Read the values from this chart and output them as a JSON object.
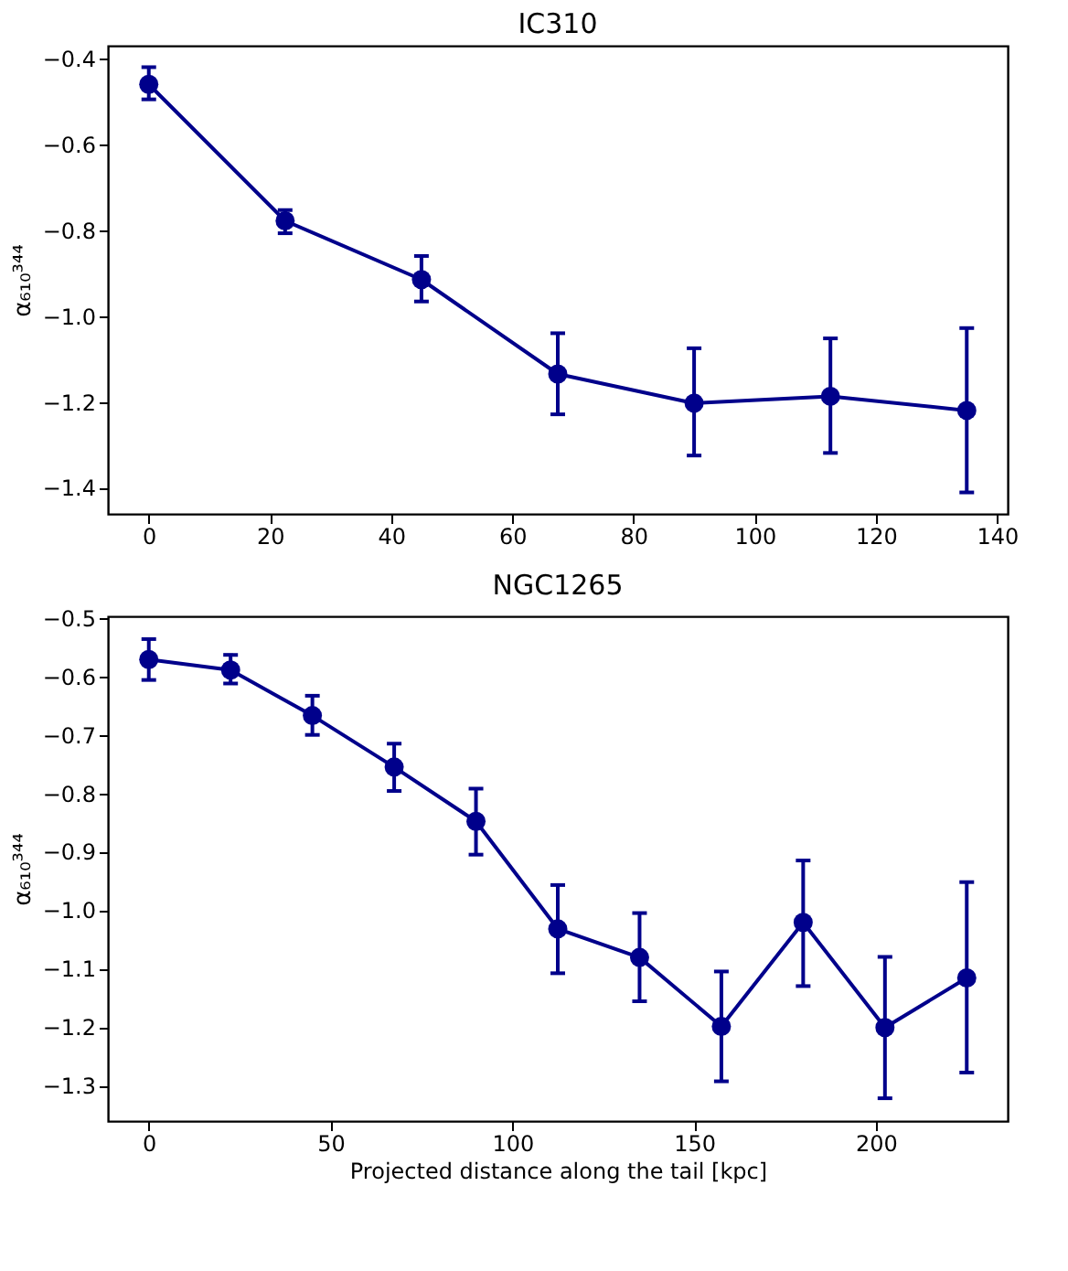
{
  "chart_data": [
    {
      "type": "line",
      "title": "IC310",
      "ylabel": "α₆₁₀³⁴⁴",
      "marker": "circle",
      "line_style": "solid",
      "grid": false,
      "x": [
        0,
        22.5,
        45,
        67.5,
        90,
        112.5,
        135
      ],
      "series": [
        {
          "color": "#00008b",
          "values": [
            -0.46,
            -0.778,
            -0.915,
            -1.135,
            -1.203,
            -1.187,
            -1.22
          ],
          "errors": [
            [
              -0.495,
              -0.42
            ],
            [
              -0.807,
              -0.753
            ],
            [
              -0.966,
              -0.86
            ],
            [
              -1.229,
              -1.04
            ],
            [
              -1.325,
              -1.075
            ],
            [
              -1.319,
              -1.052
            ],
            [
              -1.411,
              -1.028
            ]
          ]
        }
      ],
      "xlim": [
        -6.75,
        141.75
      ],
      "xticks": [
        0,
        20,
        40,
        60,
        80,
        100,
        120,
        140
      ],
      "ylim": [
        -1.461,
        -0.37
      ],
      "yticks": [
        {
          "value": -1.4,
          "label": "−1.4"
        },
        {
          "value": -1.2,
          "label": "−1.2"
        },
        {
          "value": -1.0,
          "label": "−1.0"
        },
        {
          "value": -0.8,
          "label": "−0.8"
        },
        {
          "value": -0.6,
          "label": "−0.6"
        },
        {
          "value": -0.4,
          "label": "−0.4"
        }
      ]
    },
    {
      "type": "line",
      "title": "NGC1265",
      "xlabel": "Projected distance along the tail [kpc]",
      "ylabel": "α₆₁₀³⁴⁴",
      "marker": "circle",
      "line_style": "solid",
      "grid": false,
      "x": [
        0,
        22.5,
        45,
        67.5,
        90,
        112.5,
        135,
        157.5,
        180,
        202.5,
        225
      ],
      "series": [
        {
          "color": "#00008b",
          "values": [
            -0.571,
            -0.589,
            -0.667,
            -0.755,
            -0.848,
            -1.032,
            -1.081,
            -1.199,
            -1.021,
            -1.201,
            -1.116
          ],
          "errors": [
            [
              -0.606,
              -0.536
            ],
            [
              -0.612,
              -0.563
            ],
            [
              -0.7,
              -0.633
            ],
            [
              -0.796,
              -0.715
            ],
            [
              -0.905,
              -0.792
            ],
            [
              -1.108,
              -0.957
            ],
            [
              -1.156,
              -1.005
            ],
            [
              -1.293,
              -1.105
            ],
            [
              -1.13,
              -0.915
            ],
            [
              -1.322,
              -1.08
            ],
            [
              -1.278,
              -0.952
            ]
          ]
        }
      ],
      "xlim": [
        -11.25,
        236.25
      ],
      "xticks": [
        0,
        50,
        100,
        150,
        200
      ],
      "ylim": [
        -1.361,
        -0.497
      ],
      "yticks": [
        {
          "value": -1.3,
          "label": "−1.3"
        },
        {
          "value": -1.2,
          "label": "−1.2"
        },
        {
          "value": -1.1,
          "label": "−1.1"
        },
        {
          "value": -1.0,
          "label": "−1.0"
        },
        {
          "value": -0.9,
          "label": "−0.9"
        },
        {
          "value": -0.8,
          "label": "−0.8"
        },
        {
          "value": -0.7,
          "label": "−0.7"
        },
        {
          "value": -0.6,
          "label": "−0.6"
        },
        {
          "value": -0.5,
          "label": "−0.5"
        }
      ]
    }
  ]
}
